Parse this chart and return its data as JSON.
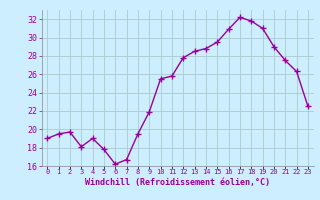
{
  "x": [
    0,
    1,
    2,
    3,
    4,
    5,
    6,
    7,
    8,
    9,
    10,
    11,
    12,
    13,
    14,
    15,
    16,
    17,
    18,
    19,
    20,
    21,
    22,
    23
  ],
  "y": [
    19.0,
    19.5,
    19.7,
    18.1,
    19.0,
    17.8,
    16.2,
    16.7,
    19.5,
    21.9,
    25.5,
    25.8,
    27.8,
    28.5,
    28.8,
    29.5,
    30.9,
    32.2,
    31.8,
    31.0,
    29.0,
    27.5,
    26.3,
    22.5
  ],
  "line_color": "#990099",
  "marker": "+",
  "marker_size": 4,
  "bg_color": "#cceeff",
  "grid_color": "#aacccc",
  "ylim": [
    16,
    33
  ],
  "yticks": [
    16,
    18,
    20,
    22,
    24,
    26,
    28,
    30,
    32
  ],
  "xlabel": "Windchill (Refroidissement éolien,°C)",
  "xlabel_color": "#990099",
  "tick_color": "#990099",
  "tick_fontsize": 5,
  "xlabel_fontsize": 6,
  "linewidth": 1.0
}
